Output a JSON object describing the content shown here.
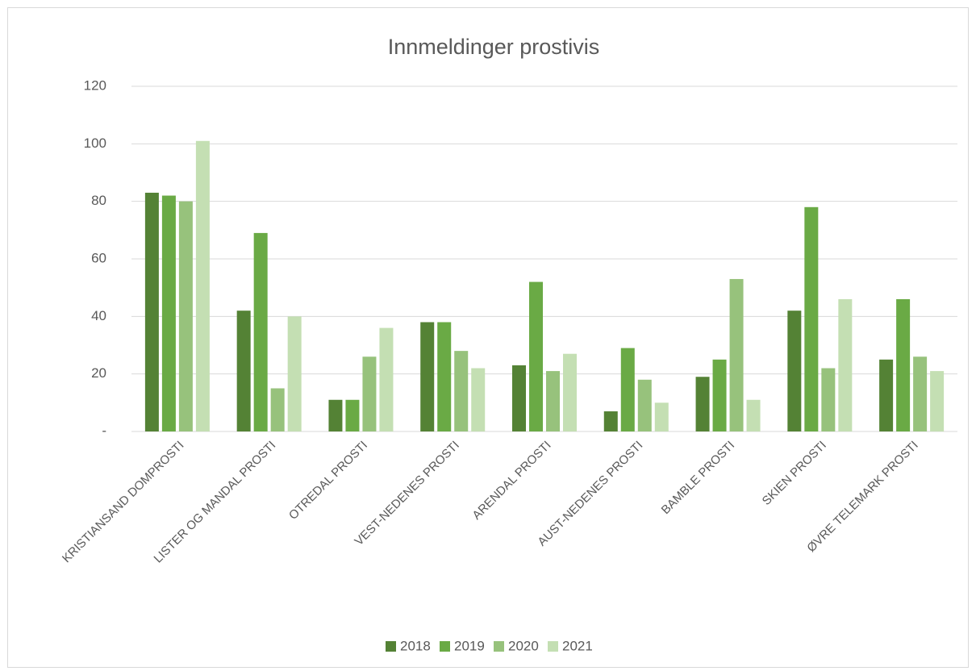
{
  "chart_data": {
    "type": "bar",
    "title": "Innmeldinger prostivis",
    "categories": [
      "KRISTIANSAND DOMPROSTI",
      "LISTER OG MANDAL PROSTI",
      "OTREDAL PROSTI",
      "VEST-NEDENES PROSTI",
      "ARENDAL PROSTI",
      "AUST-NEDENES PROSTI",
      "BAMBLE PROSTI",
      "SKIEN PROSTI",
      "ØVRE TELEMARK PROSTI"
    ],
    "series": [
      {
        "name": "2018",
        "color": "#548235",
        "values": [
          83,
          42,
          11,
          38,
          23,
          7,
          19,
          42,
          25
        ]
      },
      {
        "name": "2019",
        "color": "#6aaa45",
        "values": [
          82,
          69,
          11,
          38,
          52,
          29,
          25,
          78,
          46
        ]
      },
      {
        "name": "2020",
        "color": "#97c27c",
        "values": [
          80,
          15,
          26,
          28,
          21,
          18,
          53,
          22,
          26
        ]
      },
      {
        "name": "2021",
        "color": "#c4dfb3",
        "values": [
          101,
          40,
          36,
          22,
          27,
          10,
          11,
          46,
          21
        ]
      }
    ],
    "ylim": [
      0,
      120
    ],
    "yticks": [
      {
        "value": 0,
        "label": "-"
      },
      20,
      40,
      60,
      80,
      100,
      120
    ],
    "grid": true,
    "legend": "bottom"
  }
}
